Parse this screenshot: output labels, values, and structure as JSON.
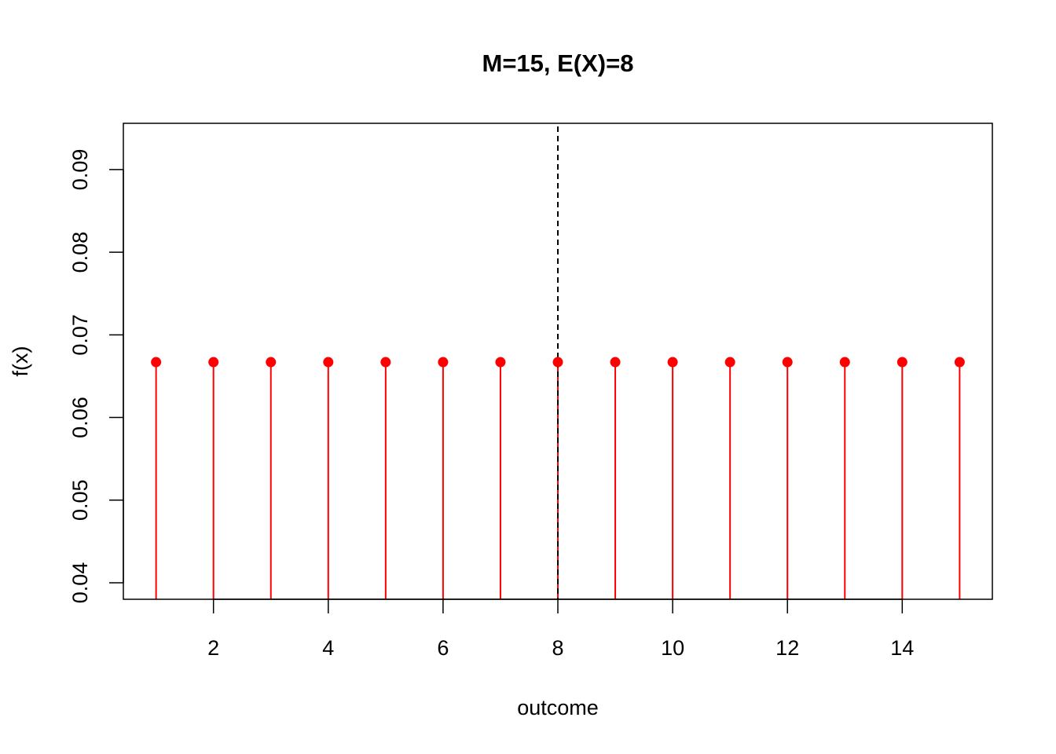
{
  "chart_data": {
    "type": "stem",
    "title": "M=15, E(X)=8",
    "xlabel": "outcome",
    "ylabel": "f(x)",
    "xlim": [
      0.43,
      15.57
    ],
    "ylim": [
      0.038,
      0.0956
    ],
    "xticks": [
      2,
      4,
      6,
      8,
      10,
      12,
      14
    ],
    "xtick_labels": [
      "2",
      "4",
      "6",
      "8",
      "10",
      "12",
      "14"
    ],
    "yticks": [
      0.04,
      0.05,
      0.06,
      0.07,
      0.08,
      0.09
    ],
    "ytick_labels": [
      "0.04",
      "0.05",
      "0.06",
      "0.07",
      "0.08",
      "0.09"
    ],
    "series": [
      {
        "x": [
          1,
          2,
          3,
          4,
          5,
          6,
          7,
          8,
          9,
          10,
          11,
          12,
          13,
          14,
          15
        ],
        "values": [
          0.0667,
          0.0667,
          0.0667,
          0.0667,
          0.0667,
          0.0667,
          0.0667,
          0.0667,
          0.0667,
          0.0667,
          0.0667,
          0.0667,
          0.0667,
          0.0667,
          0.0667
        ],
        "color": "#ff0000"
      }
    ],
    "reference_line": {
      "x": 8,
      "style": "dashed",
      "color": "#000000"
    },
    "grid": false,
    "legend": "none"
  }
}
